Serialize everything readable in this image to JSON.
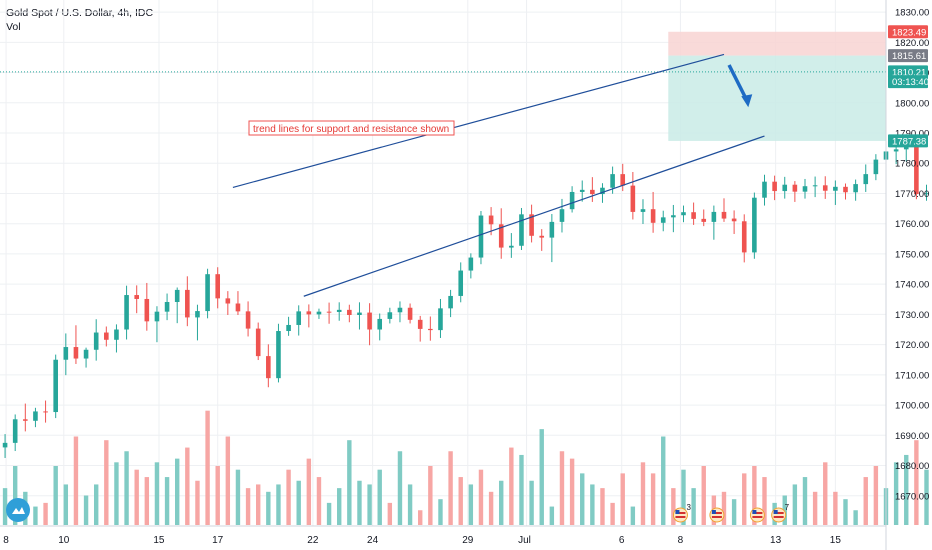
{
  "header": {
    "title": "Gold Spot / U.S. Dollar, 4h, IDC",
    "volume_label": "Vol"
  },
  "annotation": {
    "text": "trend lines for support and resistance shown"
  },
  "price_badges": [
    {
      "text": "1823.49",
      "color": "#ef5350",
      "price": 1823.49
    },
    {
      "text": "1815.61",
      "color": "#787b86",
      "price": 1815.61
    },
    {
      "text": "1810.21",
      "color": "#26a69a",
      "price": 1810.21
    },
    {
      "text": "03:13:40",
      "color": "#26a69a",
      "price": 1807.0
    },
    {
      "text": "1787.38",
      "color": "#26a69a",
      "price": 1787.38
    }
  ],
  "colors": {
    "up": "#26a69a",
    "down": "#ef5350",
    "vol_up": "#80cbc4",
    "vol_down": "#f7a6a4",
    "trend": "#1f4e9a",
    "arrow": "#1e6bc4",
    "grid": "#eef0f3"
  },
  "events": [
    {
      "icon": "us-flag-icon",
      "count": "3",
      "x": 67.2
    },
    {
      "icon": "us-flag-icon",
      "count": "",
      "x": 70.8
    },
    {
      "icon": "us-flag-icon",
      "count": "",
      "x": 74.8
    },
    {
      "icon": "us-flag-icon",
      "count": "7",
      "x": 76.9
    }
  ],
  "chart_data": {
    "type": "candlestick",
    "title": "Gold Spot / U.S. Dollar, 4h, IDC",
    "ylim": [
      1660,
      1834
    ],
    "xlim": [
      0,
      87.5
    ],
    "y_ticks": [
      1670,
      1680,
      1690,
      1700,
      1710,
      1720,
      1730,
      1740,
      1750,
      1760,
      1770,
      1780,
      1790,
      1800,
      1810,
      1820,
      1830
    ],
    "y_tick_labels": [
      "1670.00",
      "1680.00",
      "1690.00",
      "1700.00",
      "1710.00",
      "1720.00",
      "1730.00",
      "1740.00",
      "1750.00",
      "1760.00",
      "1770.00",
      "1780.00",
      "1790.00",
      "1800.00",
      "1810.00",
      "1820.00",
      "1830.00"
    ],
    "x_ticks": [
      {
        "label": "8",
        "x": 0.6
      },
      {
        "label": "10",
        "x": 6.3
      },
      {
        "label": "15",
        "x": 15.7
      },
      {
        "label": "17",
        "x": 21.5
      },
      {
        "label": "22",
        "x": 30.9
      },
      {
        "label": "24",
        "x": 36.8
      },
      {
        "label": "29",
        "x": 46.2
      },
      {
        "label": "Jul",
        "x": 52.0
      },
      {
        "label": "6",
        "x": 61.4
      },
      {
        "label": "8",
        "x": 67.2
      },
      {
        "label": "13",
        "x": 76.6
      },
      {
        "label": "15",
        "x": 82.5
      }
    ],
    "candles": [
      [
        1686.0,
        1690.4,
        1682.5,
        1687.5
      ],
      [
        1687.5,
        1696.9,
        1684.8,
        1695.3
      ],
      [
        1695.3,
        1700.5,
        1691.3,
        1694.8
      ],
      [
        1694.8,
        1699.1,
        1692.7,
        1697.9
      ],
      [
        1697.9,
        1701.5,
        1694.2,
        1697.7
      ],
      [
        1697.7,
        1716.7,
        1695.7,
        1715.0
      ],
      [
        1715.0,
        1723.7,
        1709.9,
        1719.2
      ],
      [
        1719.2,
        1726.4,
        1713.6,
        1715.4
      ],
      [
        1715.4,
        1719.0,
        1712.4,
        1718.3
      ],
      [
        1718.3,
        1728.4,
        1714.7,
        1724.0
      ],
      [
        1724.0,
        1726.0,
        1719.4,
        1721.6
      ],
      [
        1721.6,
        1726.7,
        1717.4,
        1725.0
      ],
      [
        1725.0,
        1739.5,
        1721.7,
        1736.4
      ],
      [
        1736.4,
        1739.6,
        1730.4,
        1735.1
      ],
      [
        1735.1,
        1740.4,
        1724.6,
        1727.7
      ],
      [
        1727.7,
        1732.7,
        1720.8,
        1730.9
      ],
      [
        1730.9,
        1736.9,
        1728.1,
        1734.1
      ],
      [
        1734.1,
        1738.9,
        1727.1,
        1738.1
      ],
      [
        1738.1,
        1742.6,
        1726.1,
        1729.0
      ],
      [
        1729.0,
        1733.2,
        1721.4,
        1731.1
      ],
      [
        1731.1,
        1745.1,
        1728.7,
        1743.3
      ],
      [
        1743.3,
        1745.6,
        1732.0,
        1735.3
      ],
      [
        1735.3,
        1737.7,
        1729.8,
        1733.6
      ],
      [
        1733.6,
        1737.7,
        1729.8,
        1731.0
      ],
      [
        1731.0,
        1734.3,
        1722.7,
        1725.3
      ],
      [
        1725.3,
        1727.3,
        1714.9,
        1716.2
      ],
      [
        1716.2,
        1720.1,
        1705.9,
        1708.9
      ],
      [
        1708.9,
        1726.9,
        1707.5,
        1724.5
      ],
      [
        1724.5,
        1729.2,
        1722.9,
        1726.5
      ],
      [
        1726.5,
        1733.0,
        1723.0,
        1731.0
      ],
      [
        1731.0,
        1733.3,
        1725.7,
        1730.0
      ],
      [
        1730.0,
        1731.9,
        1728.5,
        1730.9
      ],
      [
        1730.9,
        1733.9,
        1726.9,
        1730.8
      ],
      [
        1730.8,
        1734.0,
        1727.9,
        1731.5
      ],
      [
        1731.5,
        1733.2,
        1727.4,
        1729.8
      ],
      [
        1729.8,
        1734.0,
        1725.0,
        1730.6
      ],
      [
        1730.6,
        1733.7,
        1719.8,
        1725.0
      ],
      [
        1725.0,
        1730.3,
        1721.4,
        1728.5
      ],
      [
        1728.5,
        1732.2,
        1727.0,
        1730.7
      ],
      [
        1730.7,
        1734.3,
        1727.4,
        1732.2
      ],
      [
        1732.2,
        1733.6,
        1727.0,
        1728.2
      ],
      [
        1728.2,
        1729.5,
        1721.0,
        1725.2
      ],
      [
        1725.2,
        1729.3,
        1721.3,
        1724.8
      ],
      [
        1724.8,
        1735.1,
        1722.2,
        1732.0
      ],
      [
        1732.0,
        1738.1,
        1729.1,
        1736.1
      ],
      [
        1736.1,
        1747.2,
        1734.0,
        1744.5
      ],
      [
        1744.5,
        1750.2,
        1741.9,
        1748.8
      ],
      [
        1748.8,
        1764.2,
        1746.6,
        1762.7
      ],
      [
        1762.7,
        1765.5,
        1756.2,
        1759.8
      ],
      [
        1759.8,
        1765.1,
        1748.4,
        1752.1
      ],
      [
        1752.1,
        1756.9,
        1748.7,
        1752.7
      ],
      [
        1752.7,
        1765.2,
        1751.3,
        1763.1
      ],
      [
        1763.1,
        1766.3,
        1753.8,
        1756.0
      ],
      [
        1756.0,
        1758.2,
        1751.0,
        1755.4
      ],
      [
        1755.4,
        1763.2,
        1747.3,
        1760.6
      ],
      [
        1760.6,
        1768.2,
        1757.1,
        1764.8
      ],
      [
        1764.8,
        1772.4,
        1763.7,
        1770.5
      ],
      [
        1770.5,
        1774.3,
        1767.3,
        1771.2
      ],
      [
        1771.2,
        1775.4,
        1767.2,
        1769.8
      ],
      [
        1769.8,
        1773.4,
        1766.9,
        1771.9
      ],
      [
        1771.9,
        1778.9,
        1769.9,
        1776.4
      ],
      [
        1776.4,
        1779.8,
        1770.8,
        1772.6
      ],
      [
        1772.6,
        1777.1,
        1761.4,
        1763.9
      ],
      [
        1763.9,
        1768.1,
        1759.9,
        1764.8
      ],
      [
        1764.8,
        1770.5,
        1757.0,
        1760.3
      ],
      [
        1760.3,
        1764.3,
        1757.5,
        1762.1
      ],
      [
        1762.1,
        1766.2,
        1757.2,
        1762.8
      ],
      [
        1762.8,
        1766.0,
        1760.5,
        1763.8
      ],
      [
        1763.8,
        1767.0,
        1759.6,
        1761.6
      ],
      [
        1761.6,
        1764.7,
        1759.2,
        1760.6
      ],
      [
        1760.6,
        1766.0,
        1754.7,
        1763.9
      ],
      [
        1763.9,
        1768.4,
        1760.6,
        1761.7
      ],
      [
        1761.7,
        1764.4,
        1756.6,
        1760.8
      ],
      [
        1760.8,
        1763.1,
        1747.2,
        1750.5
      ],
      [
        1750.5,
        1770.3,
        1748.4,
        1768.6
      ],
      [
        1768.6,
        1776.2,
        1766.0,
        1773.9
      ],
      [
        1773.9,
        1775.9,
        1767.8,
        1770.8
      ],
      [
        1770.8,
        1775.5,
        1768.3,
        1772.9
      ],
      [
        1772.9,
        1774.1,
        1767.2,
        1770.6
      ],
      [
        1770.6,
        1774.8,
        1768.3,
        1772.4
      ],
      [
        1772.4,
        1775.6,
        1768.8,
        1772.7
      ],
      [
        1772.7,
        1775.7,
        1768.2,
        1770.9
      ],
      [
        1770.9,
        1774.3,
        1766.2,
        1772.2
      ],
      [
        1772.2,
        1773.3,
        1768.0,
        1770.4
      ],
      [
        1770.4,
        1774.6,
        1767.6,
        1773.1
      ],
      [
        1773.1,
        1779.6,
        1770.5,
        1776.4
      ],
      [
        1776.4,
        1783.0,
        1774.4,
        1781.2
      ],
      [
        1781.2,
        1785.8,
        1776.3,
        1783.9
      ],
      [
        1783.9,
        1788.5,
        1779.7,
        1784.6
      ],
      [
        1784.6,
        1789.6,
        1780.6,
        1786.1
      ],
      [
        1786.1,
        1788.1,
        1768.1,
        1769.8
      ],
      [
        1769.8,
        1772.9,
        1767.6,
        1770.1
      ],
      [
        1770.1,
        1772.1,
        1762.0,
        1767.2
      ],
      [
        1767.2,
        1770.6,
        1760.0,
        1768.2
      ],
      [
        1768.2,
        1771.8,
        1764.4,
        1766.9
      ],
      [
        1766.9,
        1772.9,
        1759.9,
        1770.9
      ],
      [
        1770.9,
        1773.9,
        1765.8,
        1769.6
      ],
      [
        1769.6,
        1776.1,
        1766.8,
        1772.1
      ],
      [
        1772.1,
        1775.8,
        1769.1,
        1774.3
      ],
      [
        1774.3,
        1778.0,
        1771.4,
        1776.2
      ],
      [
        1776.2,
        1777.8,
        1771.6,
        1774.4
      ],
      [
        1774.4,
        1777.1,
        1771.0,
        1774.9
      ],
      [
        1774.9,
        1778.1,
        1771.8,
        1774.4
      ],
      [
        1774.4,
        1776.5,
        1771.2,
        1774.3
      ],
      [
        1774.3,
        1776.1,
        1771.4,
        1773.9
      ],
      [
        1773.9,
        1774.9,
        1771.0,
        1772.4
      ],
      [
        1772.4,
        1775.9,
        1768.9,
        1773.4
      ],
      [
        1773.4,
        1775.9,
        1770.8,
        1774.5
      ],
      [
        1774.5,
        1784.3,
        1772.6,
        1782.2
      ],
      [
        1782.2,
        1786.3,
        1779.5,
        1783.9
      ],
      [
        1783.9,
        1786.7,
        1780.8,
        1784.4
      ],
      [
        1784.4,
        1786.8,
        1780.1,
        1784.5
      ],
      [
        1784.5,
        1786.9,
        1780.9,
        1783.7
      ],
      [
        1783.7,
        1786.8,
        1776.1,
        1778.4
      ],
      [
        1778.4,
        1785.5,
        1776.5,
        1783.4
      ],
      [
        1783.4,
        1788.0,
        1779.8,
        1784.8
      ],
      [
        1784.8,
        1798.5,
        1781.7,
        1796.5
      ],
      [
        1796.5,
        1799.3,
        1793.6,
        1794.4
      ],
      [
        1794.4,
        1797.1,
        1790.5,
        1795.5
      ],
      [
        1795.5,
        1797.5,
        1790.3,
        1793.8
      ],
      [
        1793.8,
        1810.3,
        1792.4,
        1808.6
      ],
      [
        1808.6,
        1817.3,
        1806.3,
        1812.8
      ],
      [
        1812.8,
        1815.5,
        1805.5,
        1808.5
      ],
      [
        1808.5,
        1813.1,
        1806.9,
        1810.2
      ]
    ],
    "volumes": [
      [
        10,
        1
      ],
      [
        16,
        1
      ],
      [
        9,
        1
      ],
      [
        5,
        1
      ],
      [
        6,
        0
      ],
      [
        16,
        1
      ],
      [
        11,
        1
      ],
      [
        24,
        0
      ],
      [
        8,
        1
      ],
      [
        11,
        1
      ],
      [
        23,
        0
      ],
      [
        17,
        1
      ],
      [
        20,
        1
      ],
      [
        15,
        0
      ],
      [
        13,
        0
      ],
      [
        17,
        1
      ],
      [
        13,
        1
      ],
      [
        18,
        1
      ],
      [
        21,
        0
      ],
      [
        12,
        0
      ],
      [
        31,
        0
      ],
      [
        16,
        0
      ],
      [
        24,
        0
      ],
      [
        15,
        1
      ],
      [
        10,
        0
      ],
      [
        11,
        0
      ],
      [
        9,
        1
      ],
      [
        11,
        1
      ],
      [
        15,
        0
      ],
      [
        12,
        1
      ],
      [
        18,
        0
      ],
      [
        13,
        0
      ],
      [
        6,
        1
      ],
      [
        10,
        1
      ],
      [
        23,
        1
      ],
      [
        12,
        1
      ],
      [
        11,
        1
      ],
      [
        15,
        1
      ],
      [
        6,
        0
      ],
      [
        20,
        1
      ],
      [
        11,
        1
      ],
      [
        4,
        0
      ],
      [
        16,
        0
      ],
      [
        7,
        1
      ],
      [
        20,
        0
      ],
      [
        13,
        0
      ],
      [
        11,
        1
      ],
      [
        15,
        0
      ],
      [
        9,
        0
      ],
      [
        12,
        1
      ],
      [
        21,
        0
      ],
      [
        19,
        1
      ],
      [
        12,
        1
      ],
      [
        26,
        1
      ],
      [
        5,
        1
      ],
      [
        20,
        0
      ],
      [
        18,
        0
      ],
      [
        14,
        1
      ],
      [
        11,
        1
      ],
      [
        10,
        0
      ],
      [
        6,
        0
      ],
      [
        14,
        0
      ],
      [
        5,
        1
      ],
      [
        17,
        0
      ],
      [
        14,
        0
      ],
      [
        24,
        1
      ],
      [
        10,
        0
      ],
      [
        15,
        1
      ],
      [
        10,
        1
      ],
      [
        16,
        0
      ],
      [
        8,
        0
      ],
      [
        9,
        0
      ],
      [
        7,
        1
      ],
      [
        14,
        0
      ],
      [
        16,
        0
      ],
      [
        13,
        0
      ],
      [
        6,
        1
      ],
      [
        8,
        1
      ],
      [
        11,
        1
      ],
      [
        13,
        1
      ],
      [
        9,
        0
      ],
      [
        17,
        0
      ],
      [
        9,
        0
      ],
      [
        7,
        1
      ],
      [
        4,
        1
      ],
      [
        13,
        0
      ],
      [
        16,
        0
      ],
      [
        10,
        1
      ],
      [
        17,
        1
      ],
      [
        19,
        1
      ],
      [
        23,
        0
      ],
      [
        15,
        1
      ],
      [
        11,
        1
      ],
      [
        12,
        0
      ],
      [
        6,
        0
      ],
      [
        14,
        0
      ],
      [
        8,
        0
      ],
      [
        12,
        1
      ],
      [
        7,
        0
      ],
      [
        12,
        1
      ],
      [
        7,
        0
      ],
      [
        10,
        1
      ],
      [
        5,
        1
      ],
      [
        14,
        0
      ],
      [
        6,
        1
      ],
      [
        10,
        0
      ],
      [
        9,
        0
      ],
      [
        14,
        1
      ],
      [
        7,
        0
      ],
      [
        11,
        1
      ],
      [
        9,
        1
      ],
      [
        16,
        0
      ],
      [
        10,
        1
      ],
      [
        8,
        1
      ],
      [
        8,
        0
      ],
      [
        7,
        1
      ],
      [
        9,
        0
      ],
      [
        18,
        1
      ],
      [
        6,
        1
      ],
      [
        12,
        1
      ],
      [
        14,
        0
      ],
      [
        12,
        0
      ],
      [
        10,
        1
      ],
      [
        19,
        1
      ]
    ],
    "trend_lines": [
      {
        "name": "resistance",
        "x1": 23.0,
        "y1": 1772.0,
        "x2": 71.5,
        "y2": 1816.0
      },
      {
        "name": "support",
        "x1": 30.0,
        "y1": 1736.0,
        "x2": 75.5,
        "y2": 1789.0
      }
    ],
    "zones": [
      {
        "kind": "stop",
        "from": 1815.61,
        "to": 1823.49,
        "x_start": 66.0
      },
      {
        "kind": "target",
        "from": 1787.38,
        "to": 1815.61,
        "x_start": 66.0
      }
    ],
    "current_price": 1810.21
  }
}
